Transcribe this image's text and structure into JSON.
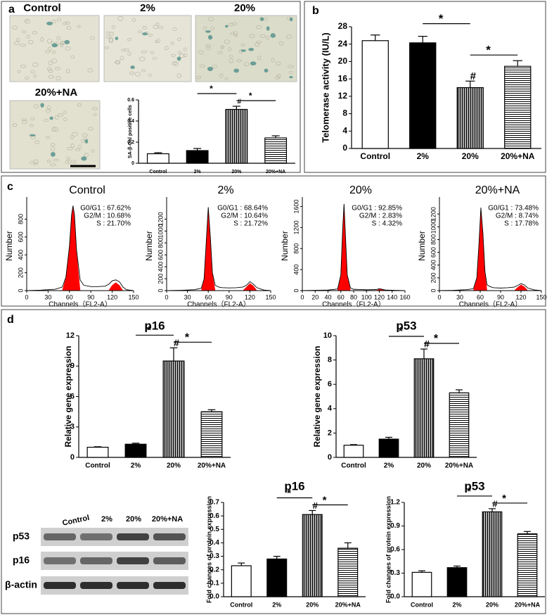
{
  "panel_labels": [
    "a",
    "b",
    "c",
    "d"
  ],
  "micrographs": {
    "labels": [
      "Control",
      "2%",
      "20%",
      "20%+NA"
    ]
  },
  "western_blot": {
    "lanes": [
      "Control",
      "2%",
      "20%",
      "20%+NA"
    ],
    "rows": [
      "p53",
      "p16",
      "β-actin"
    ]
  },
  "chart_data": [
    {
      "type": "bar",
      "ylabel": "SA-β-Gal positive cells",
      "categories": [
        "Control",
        "2%",
        "20%",
        "20%+NA"
      ],
      "values": [
        0.09,
        0.12,
        0.51,
        0.24
      ],
      "errors": [
        0.01,
        0.02,
        0.03,
        0.02
      ],
      "fills": [
        "white",
        "black",
        "vertical-lines",
        "horizontal-lines"
      ],
      "ylim": [
        0,
        0.6
      ],
      "yticks": [
        0,
        0.2,
        0.4,
        0.6
      ],
      "brackets": [
        {
          "label": "*",
          "between": [
            "2%",
            "20%"
          ]
        },
        {
          "label": "*",
          "between": [
            "20%",
            "20%+NA"
          ]
        }
      ],
      "marker": {
        "label": "#",
        "category": "20%"
      }
    },
    {
      "type": "bar",
      "ylabel": "Telomerase activity (IU/L)",
      "categories": [
        "Control",
        "2%",
        "20%",
        "20%+NA"
      ],
      "values": [
        24.8,
        24.3,
        14.0,
        18.9
      ],
      "errors": [
        1.3,
        1.5,
        1.5,
        1.3
      ],
      "fills": [
        "white",
        "black",
        "vertical-lines",
        "horizontal-lines"
      ],
      "ylim": [
        0,
        28
      ],
      "yticks": [
        0,
        4,
        8,
        12,
        16,
        20,
        24,
        28
      ],
      "brackets": [
        {
          "label": "*",
          "between": [
            "2%",
            "20%"
          ]
        },
        {
          "label": "*",
          "between": [
            "20%",
            "20%+NA"
          ]
        }
      ],
      "marker": {
        "label": "#",
        "category": "20%"
      }
    },
    {
      "type": "cytometry",
      "title": "Control",
      "xlabel": "Channels（FL2-A）",
      "ylabel": "Number",
      "stats": [
        "G0/G1 : 67.62%",
        "G2/M : 10.68%",
        "S : 21.70%"
      ],
      "xlim": [
        0,
        150
      ],
      "xticks": [
        0,
        30,
        60,
        90,
        120,
        150
      ],
      "ylim": [
        0,
        1000
      ],
      "yticks": [
        0,
        200,
        400,
        600,
        800
      ],
      "trace_color": "#000000",
      "fit_color": "#ff0000",
      "trace": {
        "x": [
          0,
          20,
          40,
          50,
          55,
          60,
          63,
          65,
          67,
          70,
          75,
          80,
          90,
          100,
          110,
          115,
          120,
          125,
          130,
          135,
          140,
          150
        ],
        "values": [
          0,
          5,
          15,
          40,
          150,
          500,
          850,
          950,
          850,
          450,
          120,
          60,
          45,
          45,
          50,
          70,
          110,
          120,
          100,
          40,
          10,
          0
        ]
      },
      "fits": [
        {
          "x": [
            50,
            55,
            60,
            63,
            65,
            67,
            70,
            75
          ],
          "values": [
            0,
            140,
            490,
            840,
            920,
            820,
            420,
            0
          ]
        },
        {
          "x": [
            115,
            120,
            125,
            130,
            135
          ],
          "values": [
            0,
            60,
            90,
            60,
            0
          ]
        }
      ]
    },
    {
      "type": "cytometry",
      "title": "2%",
      "xlabel": "Channels（FL2-A）",
      "ylabel": "Number",
      "stats": [
        "G0/G1 : 68.64%",
        "G2/M : 10.64%",
        "S : 21.72%"
      ],
      "xlim": [
        0,
        150
      ],
      "xticks": [
        0,
        30,
        60,
        90,
        120,
        150
      ],
      "ylim": [
        0,
        1500
      ],
      "yticks": [
        0,
        200,
        400,
        600,
        800,
        1000,
        1200
      ],
      "trace_color": "#000000",
      "fit_color": "#ff0000",
      "trace": {
        "x": [
          0,
          20,
          40,
          50,
          54,
          57,
          60,
          63,
          66,
          70,
          75,
          80,
          90,
          100,
          110,
          115,
          120,
          125,
          130,
          140,
          150
        ],
        "values": [
          0,
          5,
          15,
          40,
          200,
          800,
          1400,
          900,
          300,
          90,
          60,
          50,
          45,
          48,
          60,
          90,
          150,
          110,
          50,
          10,
          0
        ]
      },
      "fits": [
        {
          "x": [
            50,
            54,
            57,
            60,
            63,
            66,
            70
          ],
          "values": [
            0,
            180,
            780,
            1380,
            880,
            280,
            0
          ]
        },
        {
          "x": [
            110,
            115,
            120,
            125,
            130
          ],
          "values": [
            0,
            60,
            120,
            80,
            0
          ]
        }
      ]
    },
    {
      "type": "cytometry",
      "title": "20%",
      "xlabel": "Channels（FL2-A）",
      "ylabel": "Number",
      "stats": [
        "G0/G1 : 92.85%",
        "G2/M : 2.83%",
        "S : 4.32%"
      ],
      "xlim": [
        0,
        160
      ],
      "xticks": [
        0,
        20,
        40,
        60,
        80,
        100,
        120,
        140,
        160
      ],
      "ylim": [
        0,
        1700
      ],
      "yticks": [
        0,
        400,
        800,
        1200,
        1600
      ],
      "trace_color": "#000000",
      "fit_color": "#ff0000",
      "trace": {
        "x": [
          0,
          20,
          40,
          55,
          60,
          63,
          65,
          67,
          70,
          75,
          80,
          100,
          115,
          120,
          125,
          130,
          160
        ],
        "values": [
          0,
          5,
          10,
          30,
          300,
          1200,
          1650,
          1100,
          300,
          50,
          25,
          15,
          20,
          35,
          25,
          10,
          0
        ]
      },
      "fits": [
        {
          "x": [
            55,
            60,
            63,
            65,
            67,
            70,
            75
          ],
          "values": [
            0,
            280,
            1180,
            1630,
            1080,
            280,
            0
          ]
        },
        {
          "x": [
            115,
            120,
            125,
            130
          ],
          "values": [
            0,
            25,
            20,
            0
          ]
        }
      ]
    },
    {
      "type": "cytometry",
      "title": "20%+NA",
      "xlabel": "Channels（FL2-A）",
      "ylabel": "Number",
      "stats": [
        "G0/G1 : 73.48%",
        "G2/M : 8.74%",
        "S : 17.78%"
      ],
      "xlim": [
        0,
        150
      ],
      "xticks": [
        0,
        30,
        60,
        90,
        120,
        150
      ],
      "ylim": [
        0,
        1400
      ],
      "yticks": [
        0,
        200,
        400,
        600,
        800,
        1000,
        1200
      ],
      "trace_color": "#000000",
      "fit_color": "#ff0000",
      "trace": {
        "x": [
          0,
          20,
          40,
          50,
          55,
          58,
          61,
          64,
          67,
          70,
          75,
          80,
          90,
          100,
          110,
          115,
          120,
          125,
          130,
          140,
          150
        ],
        "values": [
          0,
          5,
          15,
          30,
          200,
          700,
          1300,
          900,
          300,
          90,
          60,
          45,
          40,
          45,
          55,
          80,
          110,
          90,
          40,
          10,
          0
        ]
      },
      "fits": [
        {
          "x": [
            50,
            55,
            58,
            61,
            64,
            67,
            70
          ],
          "values": [
            0,
            180,
            680,
            1280,
            880,
            280,
            0
          ]
        },
        {
          "x": [
            110,
            115,
            120,
            125,
            130
          ],
          "values": [
            0,
            50,
            90,
            60,
            0
          ]
        }
      ]
    },
    {
      "type": "bar",
      "title": "p16",
      "ylabel": "Relative gene expression",
      "categories": [
        "Control",
        "2%",
        "20%",
        "20%+NA"
      ],
      "values": [
        1.0,
        1.3,
        9.5,
        4.5
      ],
      "errors": [
        0.05,
        0.1,
        1.3,
        0.2
      ],
      "fills": [
        "white",
        "black",
        "vertical-lines",
        "horizontal-lines"
      ],
      "ylim": [
        0,
        12
      ],
      "yticks": [
        0,
        3,
        6,
        9,
        12
      ],
      "brackets": [
        {
          "label": "*",
          "between": [
            "2%",
            "20%"
          ]
        },
        {
          "label": "*",
          "between": [
            "20%",
            "20%+NA"
          ]
        }
      ],
      "marker": {
        "label": "#",
        "category": "20%"
      }
    },
    {
      "type": "bar",
      "title": "p53",
      "ylabel": "Relative gene expression",
      "categories": [
        "Control",
        "2%",
        "20%",
        "20%+NA"
      ],
      "values": [
        1.0,
        1.5,
        8.1,
        5.3
      ],
      "errors": [
        0.05,
        0.15,
        0.8,
        0.25
      ],
      "fills": [
        "white",
        "black",
        "vertical-lines",
        "horizontal-lines"
      ],
      "ylim": [
        0,
        10
      ],
      "yticks": [
        0,
        2,
        4,
        6,
        8,
        10
      ],
      "brackets": [
        {
          "label": "*",
          "between": [
            "2%",
            "20%"
          ]
        },
        {
          "label": "*",
          "between": [
            "20%",
            "20%+NA"
          ]
        }
      ],
      "marker": {
        "label": "#",
        "category": "20%"
      }
    },
    {
      "type": "bar",
      "title": "p16",
      "ylabel": "Fold changes of protein expression",
      "categories": [
        "Control",
        "2%",
        "20%",
        "20%+NA"
      ],
      "values": [
        0.23,
        0.28,
        0.61,
        0.36
      ],
      "errors": [
        0.02,
        0.02,
        0.03,
        0.04
      ],
      "fills": [
        "white",
        "black",
        "vertical-lines",
        "horizontal-lines"
      ],
      "ylim": [
        0,
        0.7
      ],
      "yticks": [
        {
          "value": 0,
          "label": "0.0"
        },
        0.1,
        0.2,
        0.3,
        0.4,
        0.5,
        0.6,
        0.7
      ],
      "brackets": [
        {
          "label": "*",
          "between": [
            "2%",
            "20%"
          ]
        },
        {
          "label": "*",
          "between": [
            "20%",
            "20%+NA"
          ]
        }
      ],
      "marker": {
        "label": "#",
        "category": "20%"
      }
    },
    {
      "type": "bar",
      "title": "p53",
      "ylabel": "Fold changes of protein expression",
      "categories": [
        "Control",
        "2%",
        "20%",
        "20%+NA"
      ],
      "values": [
        0.31,
        0.37,
        1.08,
        0.8
      ],
      "errors": [
        0.02,
        0.02,
        0.04,
        0.03
      ],
      "fills": [
        "white",
        "black",
        "vertical-lines",
        "horizontal-lines"
      ],
      "ylim": [
        0,
        1.2
      ],
      "yticks": [
        {
          "value": 0,
          "label": "0.0"
        },
        0.3,
        0.6,
        0.9,
        1.2
      ],
      "brackets": [
        {
          "label": "*",
          "between": [
            "2%",
            "20%"
          ]
        },
        {
          "label": "*",
          "between": [
            "20%",
            "20%+NA"
          ]
        }
      ],
      "marker": {
        "label": "#",
        "category": "20%"
      }
    }
  ]
}
